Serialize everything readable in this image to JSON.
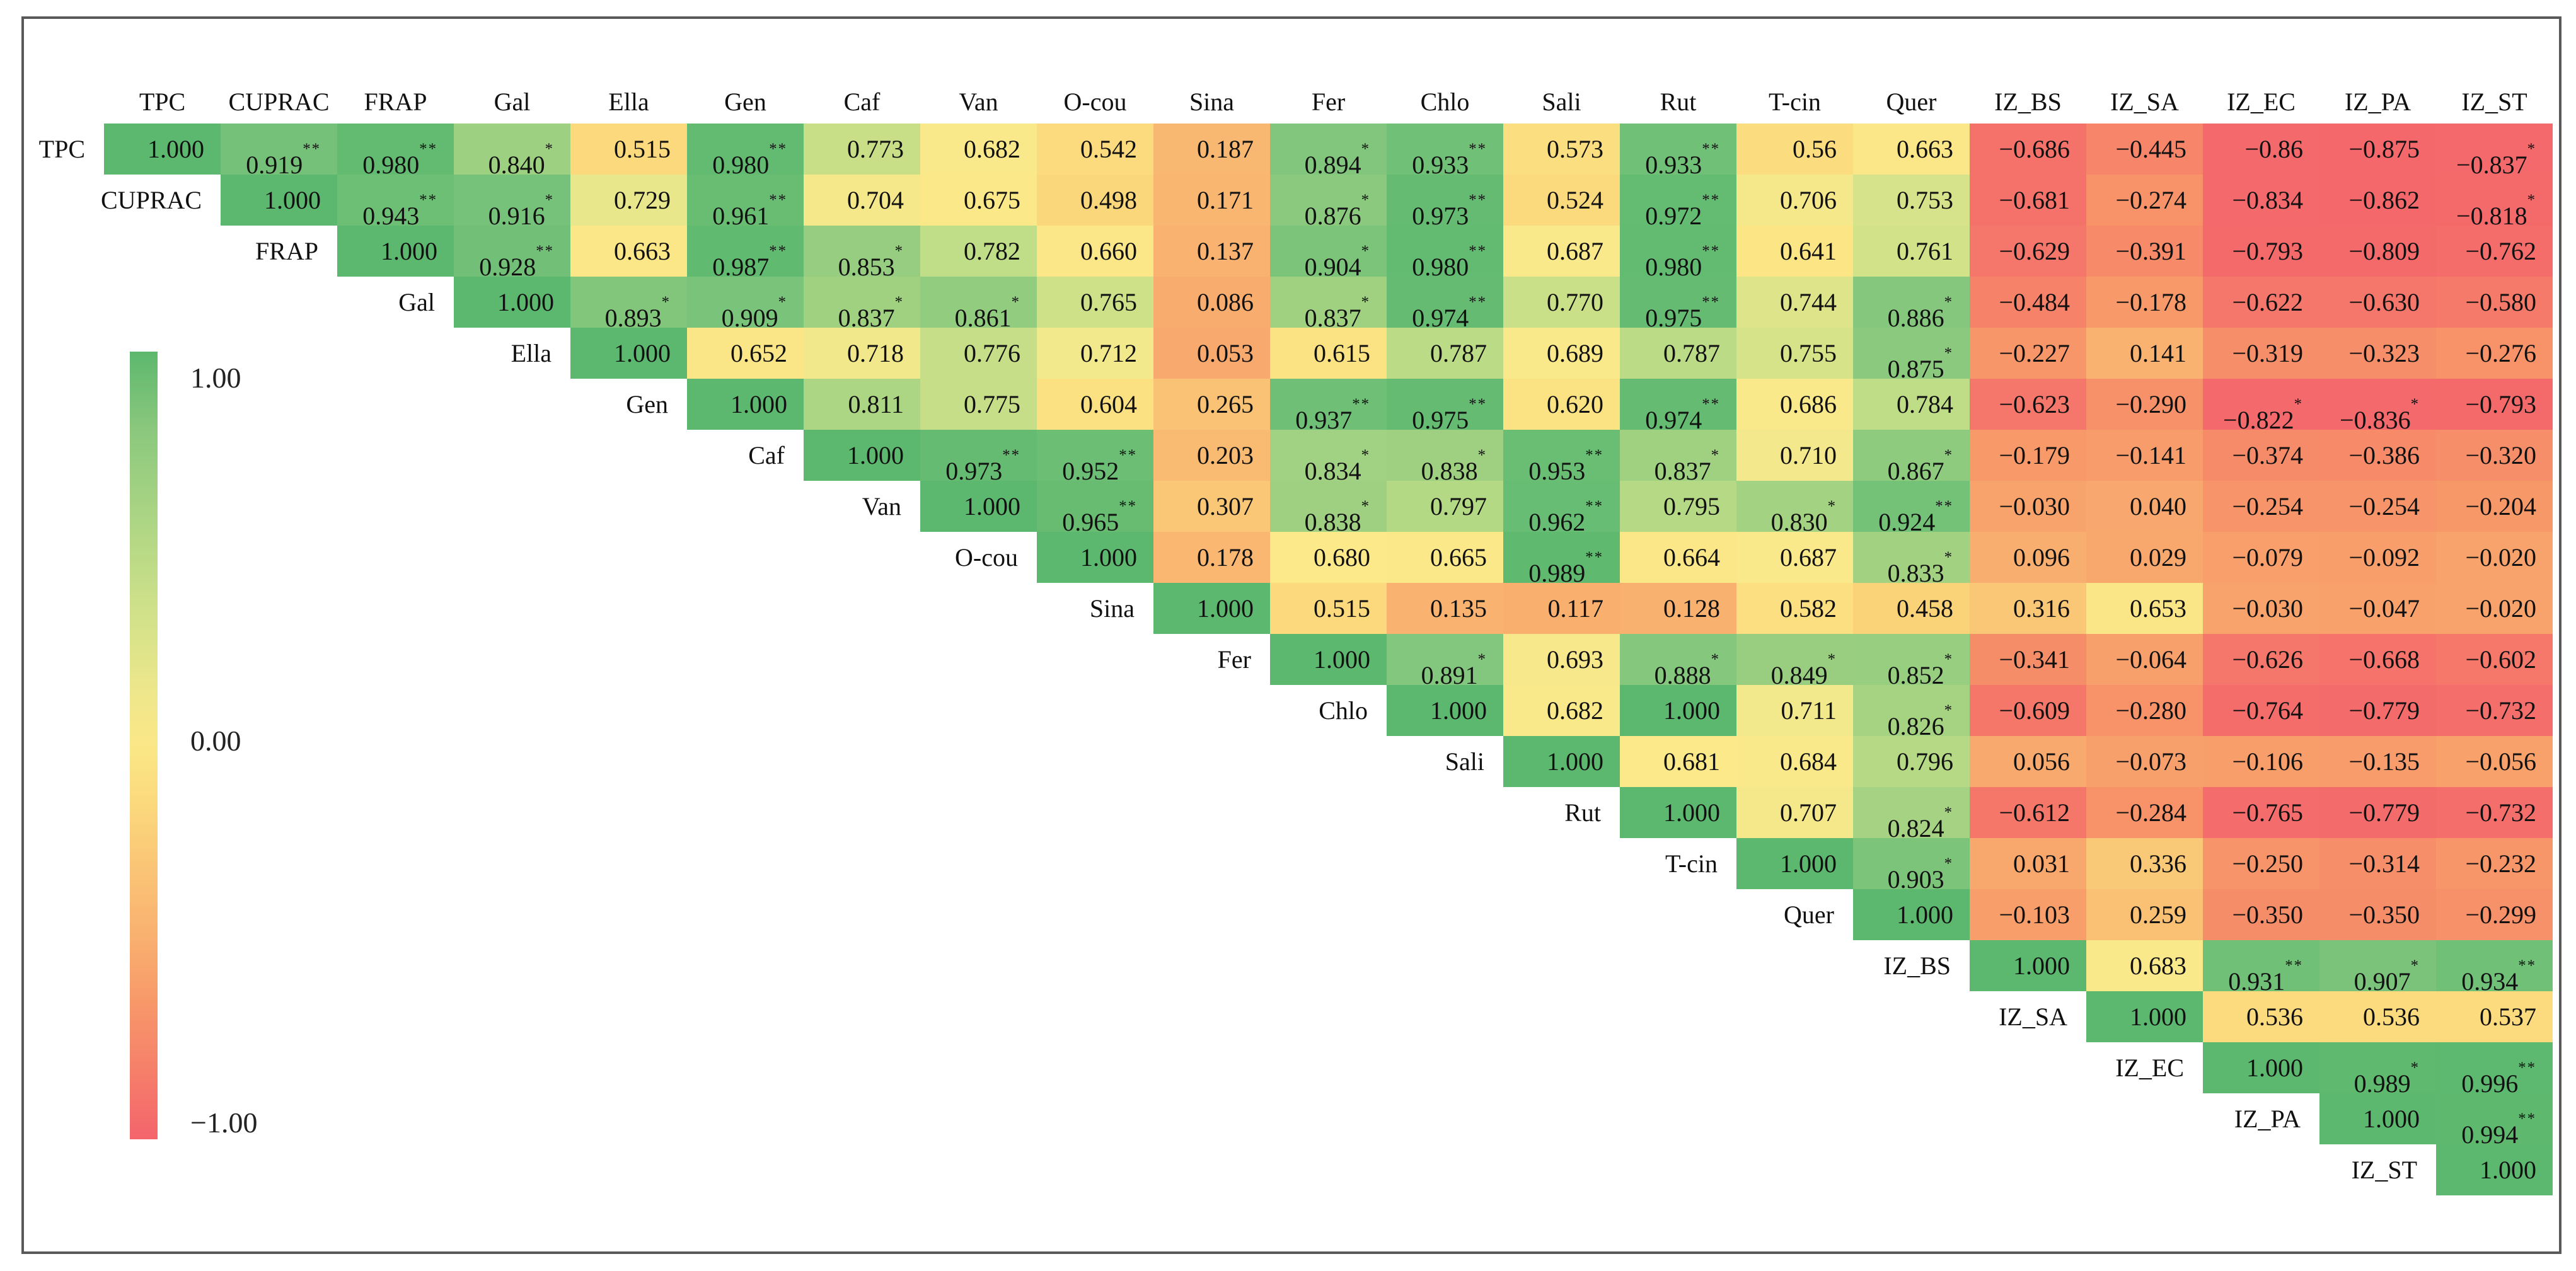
{
  "figure": {
    "background_color": "#ffffff",
    "border_color": "#595959"
  },
  "chart_data": {
    "type": "heatmap",
    "subtype": "upper-triangular-correlation-matrix",
    "title": "",
    "labels": [
      "TPC",
      "CUPRAC",
      "FRAP",
      "Gal",
      "Ella",
      "Gen",
      "Caf",
      "Van",
      "O-cou",
      "Sina",
      "Fer",
      "Chlo",
      "Sali",
      "Rut",
      "T-cin",
      "Quer",
      "IZ_BS",
      "IZ_SA",
      "IZ_EC",
      "IZ_PA",
      "IZ_ST"
    ],
    "values_upper_triangle": [
      [
        "1.000",
        "0.919**",
        "0.980**",
        "0.840*",
        "0.515",
        "0.980**",
        "0.773",
        "0.682",
        "0.542",
        "0.187",
        "0.894*",
        "0.933**",
        "0.573",
        "0.933**",
        "0.56",
        "0.663",
        "−0.686",
        "−0.445",
        "−0.86",
        "−0.875",
        "−0.837*"
      ],
      [
        "1.000",
        "0.943**",
        "0.916*",
        "0.729",
        "0.961**",
        "0.704",
        "0.675",
        "0.498",
        "0.171",
        "0.876*",
        "0.973**",
        "0.524",
        "0.972**",
        "0.706",
        "0.753",
        "−0.681",
        "−0.274",
        "−0.834",
        "−0.862",
        "−0.818*"
      ],
      [
        "1.000",
        "0.928**",
        "0.663",
        "0.987**",
        "0.853*",
        "0.782",
        "0.660",
        "0.137",
        "0.904*",
        "0.980**",
        "0.687",
        "0.980**",
        "0.641",
        "0.761",
        "−0.629",
        "−0.391",
        "−0.793",
        "−0.809",
        "−0.762"
      ],
      [
        "1.000",
        "0.893*",
        "0.909*",
        "0.837*",
        "0.861*",
        "0.765",
        "0.086",
        "0.837*",
        "0.974**",
        "0.770",
        "0.975**",
        "0.744",
        "0.886*",
        "−0.484",
        "−0.178",
        "−0.622",
        "−0.630",
        "−0.580"
      ],
      [
        "1.000",
        "0.652",
        "0.718",
        "0.776",
        "0.712",
        "0.053",
        "0.615",
        "0.787",
        "0.689",
        "0.787",
        "0.755",
        "0.875*",
        "−0.227",
        "0.141",
        "−0.319",
        "−0.323",
        "−0.276"
      ],
      [
        "1.000",
        "0.811",
        "0.775",
        "0.604",
        "0.265",
        "0.937**",
        "0.975**",
        "0.620",
        "0.974**",
        "0.686",
        "0.784",
        "−0.623",
        "−0.290",
        "−0.822*",
        "−0.836*",
        "−0.793"
      ],
      [
        "1.000",
        "0.973**",
        "0.952**",
        "0.203",
        "0.834*",
        "0.838*",
        "0.953**",
        "0.837*",
        "0.710",
        "0.867*",
        "−0.179",
        "−0.141",
        "−0.374",
        "−0.386",
        "−0.320"
      ],
      [
        "1.000",
        "0.965**",
        "0.307",
        "0.838*",
        "0.797",
        "0.962**",
        "0.795",
        "0.830*",
        "0.924**",
        "−0.030",
        "0.040",
        "−0.254",
        "−0.254",
        "−0.204"
      ],
      [
        "1.000",
        "0.178",
        "0.680",
        "0.665",
        "0.989**",
        "0.664",
        "0.687",
        "0.833*",
        "0.096",
        "0.029",
        "−0.079",
        "−0.092",
        "−0.020"
      ],
      [
        "1.000",
        "0.515",
        "0.135",
        "0.117",
        "0.128",
        "0.582",
        "0.458",
        "0.316",
        "0.653",
        "−0.030",
        "−0.047",
        "−0.020"
      ],
      [
        "1.000",
        "0.891*",
        "0.693",
        "0.888*",
        "0.849*",
        "0.852*",
        "−0.341",
        "−0.064",
        "−0.626",
        "−0.668",
        "−0.602"
      ],
      [
        "1.000",
        "0.682",
        "1.000",
        "0.711",
        "0.826*",
        "−0.609",
        "−0.280",
        "−0.764",
        "−0.779",
        "−0.732"
      ],
      [
        "1.000",
        "0.681",
        "0.684",
        "0.796",
        "0.056",
        "−0.073",
        "−0.106",
        "−0.135",
        "−0.056"
      ],
      [
        "1.000",
        "0.707",
        "0.824*",
        "−0.612",
        "−0.284",
        "−0.765",
        "−0.779",
        "−0.732"
      ],
      [
        "1.000",
        "0.903*",
        "0.031",
        "0.336",
        "−0.250",
        "−0.314",
        "−0.232"
      ],
      [
        "1.000",
        "−0.103",
        "0.259",
        "−0.350",
        "−0.350",
        "−0.299"
      ],
      [
        "1.000",
        "0.683",
        "0.931**",
        "0.907*",
        "0.934**"
      ],
      [
        "1.000",
        "0.536",
        "0.536",
        "0.537"
      ],
      [
        "1.000",
        "0.989*",
        "0.996**"
      ],
      [
        "1.000",
        "0.994**"
      ],
      [
        "1.000"
      ]
    ],
    "value_range": [
      -1,
      1
    ],
    "grid": false,
    "legend_position": "left",
    "colorbar": {
      "top_label": "1.00",
      "mid_label": "0.00",
      "bottom_label": "−1.00",
      "top_color": "#5cb86e",
      "mid_color": "#fbe787",
      "bottom_color": "#f4646c"
    },
    "colorbar_gradient": [
      {
        "pos": 0,
        "c": "#5cb86e"
      },
      {
        "pos": 10,
        "c": "#8bc87d"
      },
      {
        "pos": 22,
        "c": "#aed684"
      },
      {
        "pos": 34,
        "c": "#d3e28a"
      },
      {
        "pos": 44,
        "c": "#f0e78b"
      },
      {
        "pos": 50,
        "c": "#fbe787"
      },
      {
        "pos": 57,
        "c": "#fbda7d"
      },
      {
        "pos": 65,
        "c": "#fac676"
      },
      {
        "pos": 74,
        "c": "#f9b170"
      },
      {
        "pos": 82,
        "c": "#f79a69"
      },
      {
        "pos": 90,
        "c": "#f6836a"
      },
      {
        "pos": 100,
        "c": "#f4646c"
      }
    ],
    "colormap_anchors": [
      {
        "v": -1.0,
        "c": "#f4656c"
      },
      {
        "v": -0.8,
        "c": "#f46a6b"
      },
      {
        "v": -0.6,
        "c": "#f5786a"
      },
      {
        "v": -0.4,
        "c": "#f68969"
      },
      {
        "v": -0.2,
        "c": "#f79869"
      },
      {
        "v": -0.05,
        "c": "#f8a16b"
      },
      {
        "v": 0.05,
        "c": "#f8a96e"
      },
      {
        "v": 0.15,
        "c": "#f9b370"
      },
      {
        "v": 0.3,
        "c": "#fac676"
      },
      {
        "v": 0.45,
        "c": "#fad279"
      },
      {
        "v": 0.55,
        "c": "#fbdc7e"
      },
      {
        "v": 0.62,
        "c": "#fbe383"
      },
      {
        "v": 0.68,
        "c": "#fbe98a"
      },
      {
        "v": 0.72,
        "c": "#f0e88c"
      },
      {
        "v": 0.76,
        "c": "#d2e289"
      },
      {
        "v": 0.8,
        "c": "#b2d885"
      },
      {
        "v": 0.84,
        "c": "#9ed081"
      },
      {
        "v": 0.88,
        "c": "#88c87e"
      },
      {
        "v": 0.92,
        "c": "#75c179"
      },
      {
        "v": 0.96,
        "c": "#68bd73"
      },
      {
        "v": 1.0,
        "c": "#5cb86e"
      }
    ]
  }
}
